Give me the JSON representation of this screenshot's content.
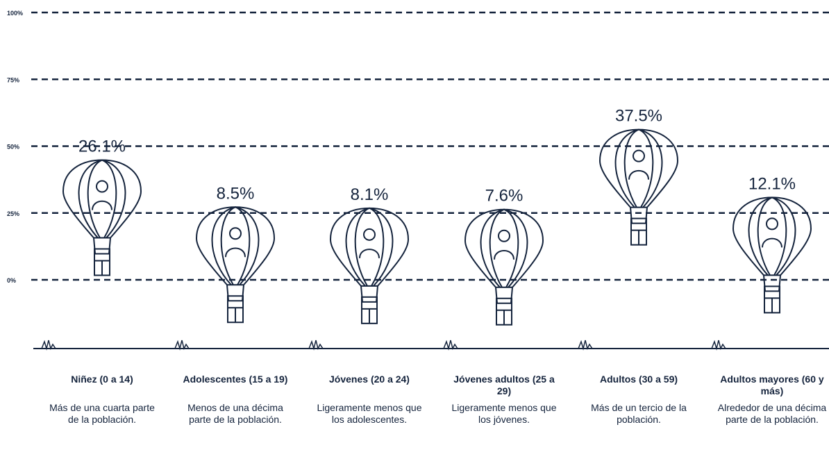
{
  "chart_data": {
    "type": "balloon",
    "categories": [
      "Niñez (0 a 14)",
      "Adolescentes (15 a 19)",
      "Jóvenes (20 a 24)",
      "Jóvenes adultos (25 a 29)",
      "Adultos (30 a 59)",
      "Adultos mayores (60 y más)"
    ],
    "descriptions": [
      "Más de una cuarta parte de la población.",
      "Menos de una décima parte de la población.",
      "Ligeramente menos que los adolescentes.",
      "Ligeramente menos que los jóvenes.",
      "Más de un tercio de la población.",
      "Alrededor de una décima parte de la población."
    ],
    "values": [
      26.1,
      8.5,
      8.1,
      7.6,
      37.5,
      12.1
    ],
    "value_labels": [
      "26.1%",
      "8.5%",
      "8.1%",
      "7.6%",
      "37.5%",
      "12.1%"
    ],
    "color": "#14233c",
    "ylim": [
      0,
      100
    ],
    "yticks": [
      {
        "value": 0,
        "label": "0%"
      },
      {
        "value": 25,
        "label": "25%"
      },
      {
        "value": 50,
        "label": "50%"
      },
      {
        "value": 75,
        "label": "75%"
      },
      {
        "value": 100,
        "label": "100%"
      }
    ],
    "grid": true
  }
}
